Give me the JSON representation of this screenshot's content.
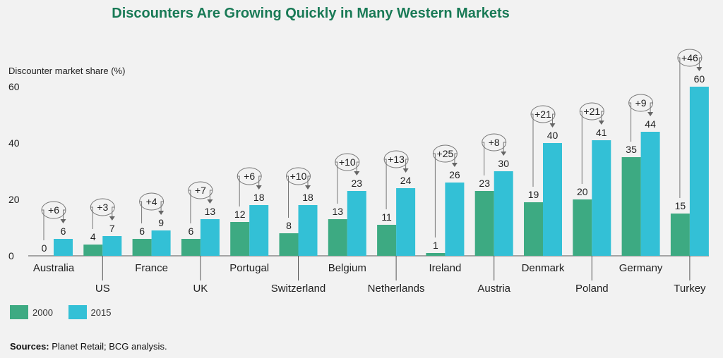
{
  "chart_data": {
    "type": "bar",
    "title": "Discounters Are Growing Quickly in Many Western Markets",
    "ylabel": "Discounter market share (%)",
    "ylim": [
      0,
      60
    ],
    "yticks": [
      "0",
      "20",
      "40",
      "60"
    ],
    "grid": false,
    "legend_placement": "bottom-left",
    "categories": [
      "Australia",
      "US",
      "France",
      "UK",
      "Portugal",
      "Switzerland",
      "Belgium",
      "Netherlands",
      "Ireland",
      "Austria",
      "Denmark",
      "Poland",
      "Germany",
      "Turkey"
    ],
    "series": [
      {
        "name": "2000",
        "color": "#3daa82",
        "values": [
          0,
          4,
          6,
          6,
          12,
          8,
          13,
          11,
          1,
          23,
          19,
          20,
          35,
          15
        ]
      },
      {
        "name": "2015",
        "color": "#33c0d6",
        "values": [
          6,
          7,
          9,
          13,
          18,
          18,
          23,
          24,
          26,
          30,
          40,
          41,
          44,
          60
        ]
      }
    ],
    "change_labels": [
      "+6",
      "+3",
      "+4",
      "+7",
      "+6",
      "+10",
      "+10",
      "+13",
      "+25",
      "+8",
      "+21",
      "+21",
      "+9",
      "+46"
    ]
  },
  "source": {
    "label": "Sources:",
    "text": "Planet Retail; BCG analysis."
  }
}
